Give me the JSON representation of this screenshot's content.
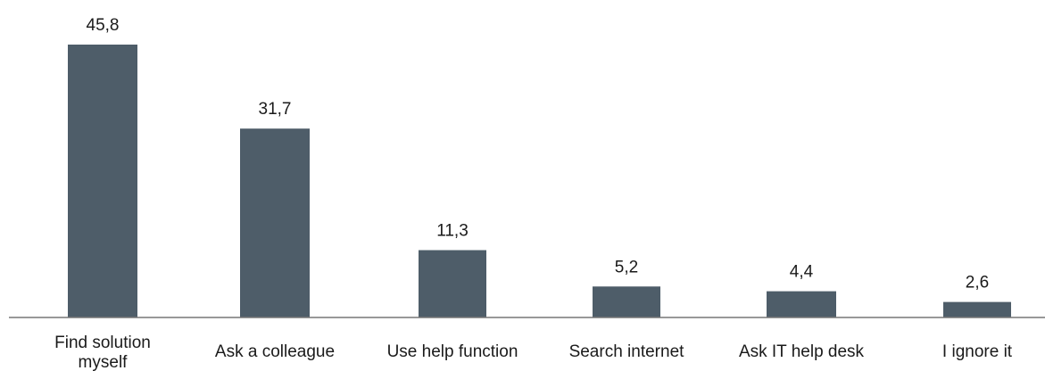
{
  "chart_data": {
    "type": "bar",
    "categories": [
      [
        "Find solution",
        "myself"
      ],
      [
        "Ask a colleague"
      ],
      [
        "Use help function"
      ],
      [
        "Search internet"
      ],
      [
        "Ask IT help desk"
      ],
      [
        "I ignore it"
      ]
    ],
    "values": [
      45.8,
      31.7,
      11.3,
      5.2,
      4.4,
      2.6
    ],
    "value_labels": [
      "45,8",
      "31,7",
      "11,3",
      "5,2",
      "4,4",
      "2,6"
    ],
    "title": "",
    "xlabel": "",
    "ylabel": "",
    "ylim": [
      0,
      45.8
    ],
    "grid": false,
    "legend": "none",
    "colors": {
      "bar": "#4e5d69",
      "axis": "#777777",
      "text": "#1a1a1a"
    }
  }
}
